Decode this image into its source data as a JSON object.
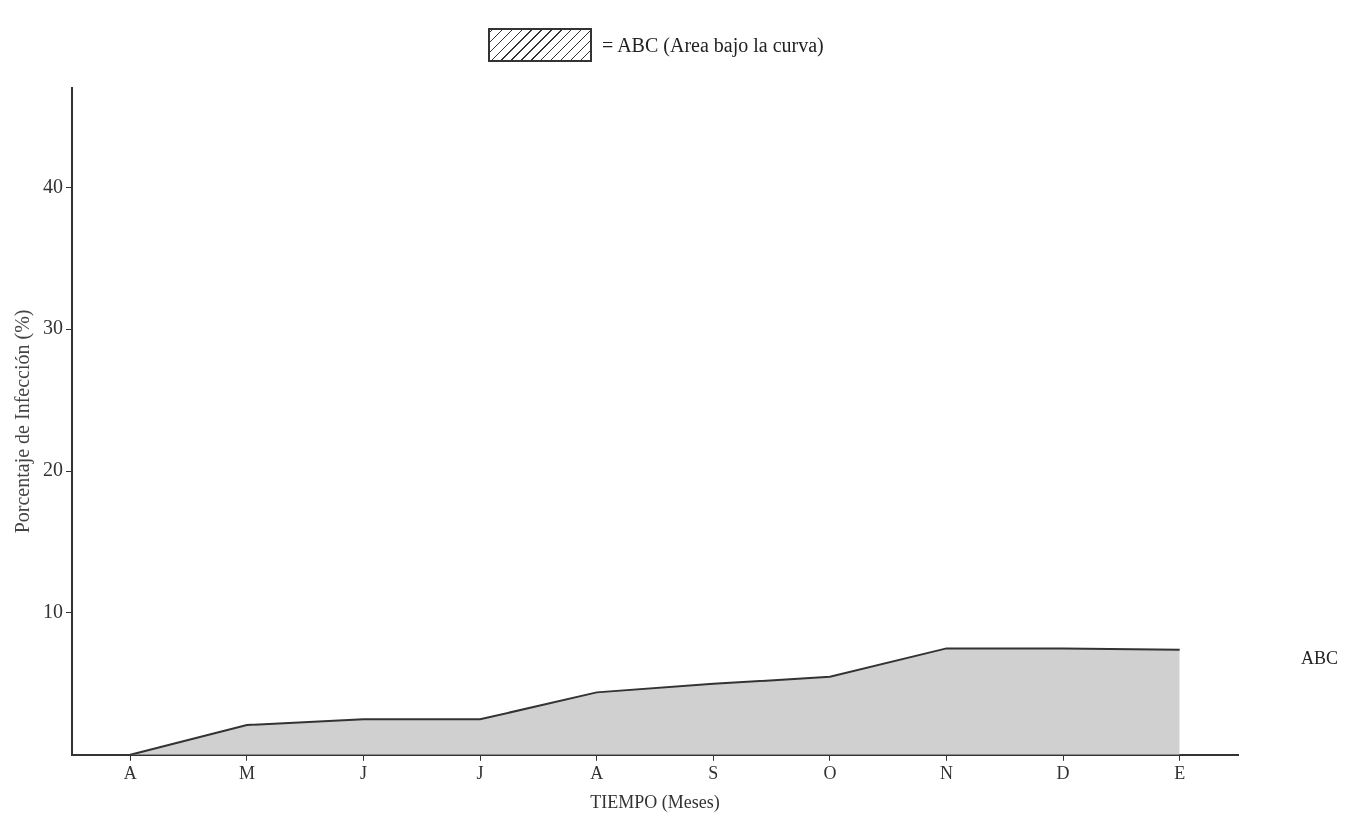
{
  "chart_data": {
    "type": "area",
    "xlabel": "TIEMPO (Meses)",
    "ylabel": "Porcentaje de Infección (%)",
    "categories": [
      "A",
      "M",
      "J",
      "J",
      "A",
      "S",
      "O",
      "N",
      "D",
      "E"
    ],
    "series": [
      {
        "name": "= ABC (Area bajo la curva)",
        "color": "#333333",
        "values": [
          0,
          2.1,
          2.5,
          2.5,
          4.4,
          5.0,
          5.5,
          7.5,
          7.5,
          7.4
        ]
      }
    ],
    "ylim": [
      0,
      47
    ],
    "yticks": [
      10,
      20,
      30,
      40
    ],
    "annotations": [
      "ABC"
    ],
    "legend": "top",
    "grid": false,
    "marker": "none"
  }
}
